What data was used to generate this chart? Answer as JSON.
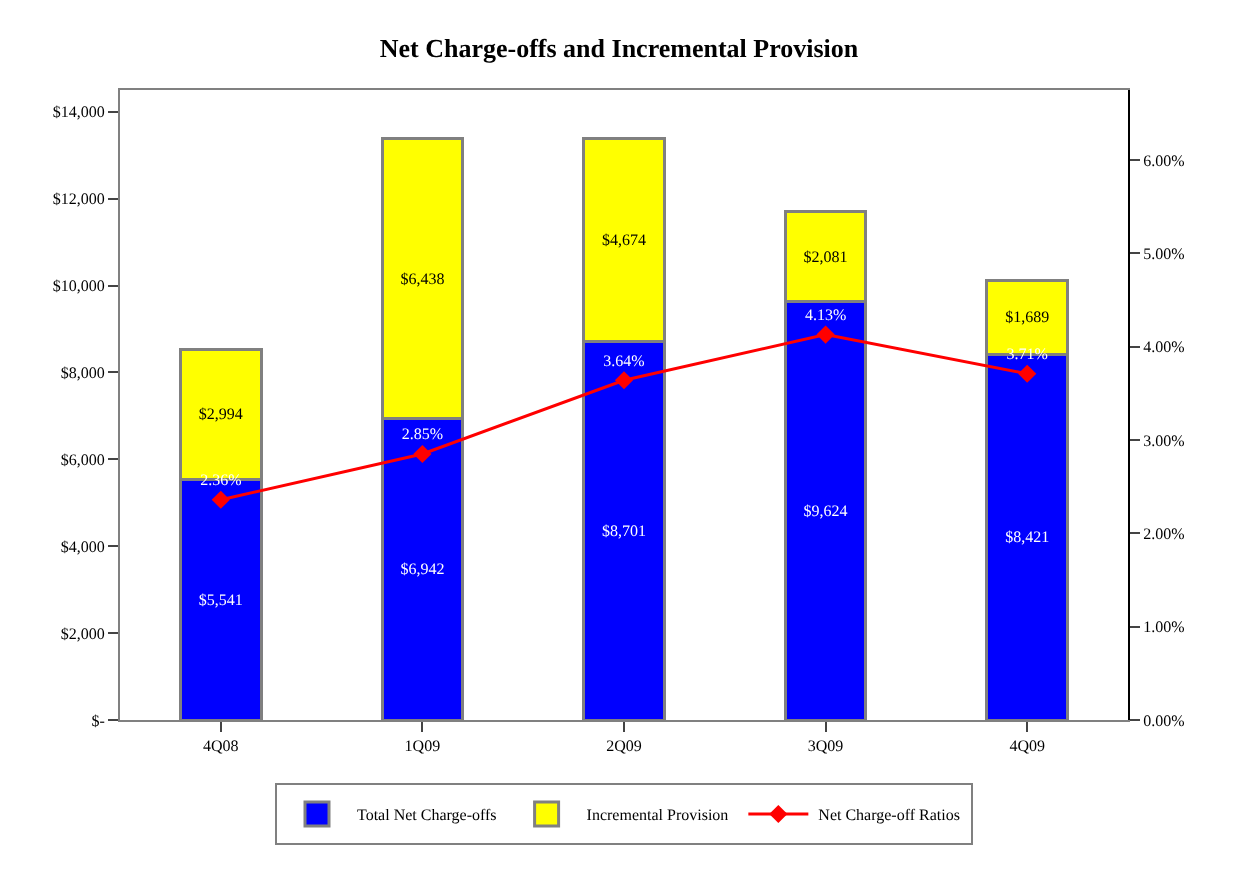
{
  "chart_data": {
    "type": "bar",
    "title": "Net Charge-offs and Incremental Provision",
    "stacked": true,
    "categories": [
      "4Q08",
      "1Q09",
      "2Q09",
      "3Q09",
      "4Q09"
    ],
    "series": [
      {
        "name": "Total Net Charge-offs",
        "color": "#0000ff",
        "values": [
          5541,
          6942,
          8701,
          9624,
          8421
        ],
        "value_labels": [
          "$5,541",
          "$6,942",
          "$8,701",
          "$9,624",
          "$8,421"
        ]
      },
      {
        "name": "Incremental Provision",
        "color": "#ffff00",
        "values": [
          2994,
          6438,
          4674,
          2081,
          1689
        ],
        "value_labels": [
          "$2,994",
          "$6,438",
          "$4,674",
          "$2,081",
          "$1,689"
        ]
      },
      {
        "name": "Net Charge-off Ratios",
        "type": "line",
        "axis": "y2",
        "color": "#ff0000",
        "marker": "diamond",
        "values": [
          2.36,
          2.85,
          3.64,
          4.13,
          3.71
        ],
        "value_labels": [
          "2.36%",
          "2.85%",
          "3.64%",
          "4.13%",
          "3.71%"
        ]
      }
    ],
    "ylim": [
      0,
      14500
    ],
    "yticks": [
      {
        "value": 0,
        "label": "$-"
      },
      {
        "value": 2000,
        "label": "$2,000"
      },
      {
        "value": 4000,
        "label": "$4,000"
      },
      {
        "value": 6000,
        "label": "$6,000"
      },
      {
        "value": 8000,
        "label": "$8,000"
      },
      {
        "value": 10000,
        "label": "$10,000"
      },
      {
        "value": 12000,
        "label": "$12,000"
      },
      {
        "value": 14000,
        "label": "$14,000"
      }
    ],
    "y2lim": [
      0,
      6.75
    ],
    "y2ticks": [
      {
        "value": 0,
        "label": "0.00%"
      },
      {
        "value": 1,
        "label": "1.00%"
      },
      {
        "value": 2,
        "label": "2.00%"
      },
      {
        "value": 3,
        "label": "3.00%"
      },
      {
        "value": 4,
        "label": "4.00%"
      },
      {
        "value": 5,
        "label": "5.00%"
      },
      {
        "value": 6,
        "label": "6.00%"
      }
    ],
    "legend": "bottom"
  }
}
